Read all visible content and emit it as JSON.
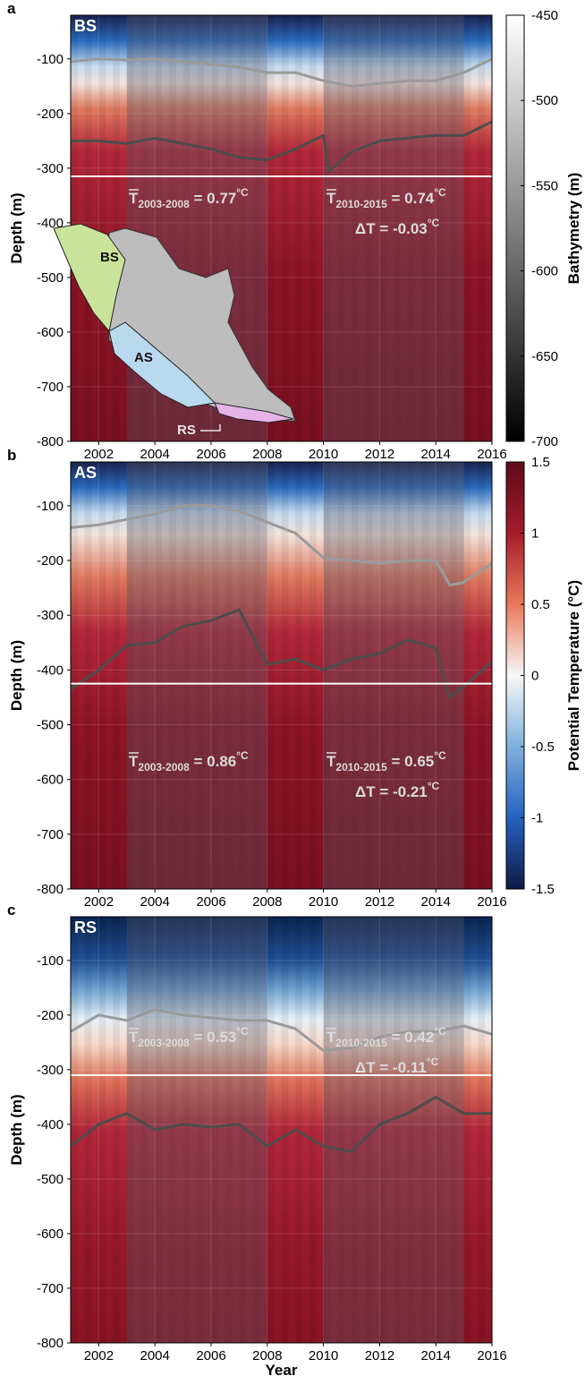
{
  "colors": {
    "warm_dark": "#6e0f1c",
    "warm": "#a51c2c",
    "neutral": "#f2f2f2",
    "cool": "#2a6cbf",
    "cool_dark": "#1b2350",
    "period_shade": "#5a5a6a",
    "isotherm_light": "#9a9a9a",
    "isotherm_dark": "#4d4d4d",
    "bathymetry_line": "#ffffff",
    "map_bs": "#c9e39a",
    "map_as": "#b9d9ee",
    "map_rs": "#e6b3e8",
    "map_land": "#bdbdbd"
  },
  "chart_data": [
    {
      "panel_letter": "a",
      "region": "BS",
      "type": "heatmap",
      "xlabel": "",
      "ylabel": "Depth (m)",
      "xlim": [
        2001,
        2016
      ],
      "ylim": [
        -800,
        -20
      ],
      "x_ticks": [
        "2002",
        "2004",
        "2006",
        "2008",
        "2010",
        "2012",
        "2014",
        "2016"
      ],
      "y_ticks": [
        "-100",
        "-200",
        "-300",
        "-400",
        "-500",
        "-600",
        "-700",
        "-800"
      ],
      "shaded_periods": [
        [
          2003,
          2008
        ],
        [
          2010,
          2015
        ]
      ],
      "bathymetry_depth": -315,
      "isotherm_upper": {
        "x": [
          2001,
          2002,
          2003,
          2004,
          2005,
          2006,
          2007,
          2008,
          2009,
          2010,
          2011,
          2012,
          2013,
          2014,
          2015,
          2016
        ],
        "y": [
          -105,
          -100,
          -102,
          -100,
          -105,
          -110,
          -115,
          -125,
          -125,
          -140,
          -150,
          -145,
          -140,
          -140,
          -125,
          -100
        ]
      },
      "isotherm_lower": {
        "x": [
          2001,
          2002,
          2003,
          2004,
          2005,
          2006,
          2007,
          2008,
          2009,
          2010,
          2010.2,
          2011,
          2012,
          2013,
          2014,
          2015,
          2016
        ],
        "y": [
          -250,
          -250,
          -255,
          -245,
          -255,
          -265,
          -280,
          -285,
          -265,
          -240,
          -305,
          -270,
          -250,
          -245,
          -240,
          -240,
          -215
        ]
      },
      "annotations": [
        {
          "main": "T",
          "sub": "2003-2008",
          "value": " = 0.77",
          "unit": "°C"
        },
        {
          "main": "T",
          "sub": "2010-2015",
          "value": " = 0.74",
          "unit": "°C"
        },
        {
          "main": "ΔT = -0.03",
          "unit": "°C"
        }
      ],
      "map_inset": {
        "labels": [
          "BS",
          "AS",
          "RS"
        ]
      }
    },
    {
      "panel_letter": "b",
      "region": "AS",
      "type": "heatmap",
      "xlabel": "",
      "ylabel": "Depth (m)",
      "xlim": [
        2001,
        2016
      ],
      "ylim": [
        -800,
        -20
      ],
      "x_ticks": [
        "2002",
        "2004",
        "2006",
        "2008",
        "2010",
        "2012",
        "2014",
        "2016"
      ],
      "y_ticks": [
        "-100",
        "-200",
        "-300",
        "-400",
        "-500",
        "-600",
        "-700",
        "-800"
      ],
      "shaded_periods": [
        [
          2003,
          2008
        ],
        [
          2010,
          2015
        ]
      ],
      "bathymetry_depth": -425,
      "isotherm_upper": {
        "x": [
          2001,
          2002,
          2003,
          2004,
          2005,
          2006,
          2007,
          2008,
          2009,
          2010,
          2011,
          2012,
          2013,
          2014,
          2014.5,
          2015,
          2016
        ],
        "y": [
          -140,
          -135,
          -125,
          -115,
          -100,
          -100,
          -110,
          -130,
          -150,
          -195,
          -200,
          -205,
          -200,
          -200,
          -245,
          -240,
          -205
        ]
      },
      "isotherm_lower": {
        "x": [
          2001,
          2002,
          2003,
          2004,
          2005,
          2006,
          2007,
          2008,
          2009,
          2010,
          2011,
          2012,
          2013,
          2014,
          2014.5,
          2015,
          2016
        ],
        "y": [
          -435,
          -400,
          -355,
          -350,
          -320,
          -310,
          -290,
          -390,
          -380,
          -400,
          -380,
          -370,
          -345,
          -360,
          -450,
          -430,
          -385
        ]
      },
      "annotations": [
        {
          "main": "T",
          "sub": "2003-2008",
          "value": " = 0.86",
          "unit": "°C"
        },
        {
          "main": "T",
          "sub": "2010-2015",
          "value": " = 0.65",
          "unit": "°C"
        },
        {
          "main": "ΔT = -0.21",
          "unit": "°C"
        }
      ]
    },
    {
      "panel_letter": "c",
      "region": "RS",
      "type": "heatmap",
      "xlabel": "Year",
      "ylabel": "Depth (m)",
      "xlim": [
        2001,
        2016
      ],
      "ylim": [
        -800,
        -20
      ],
      "x_ticks": [
        "2002",
        "2004",
        "2006",
        "2008",
        "2010",
        "2012",
        "2014",
        "2016"
      ],
      "y_ticks": [
        "-100",
        "-200",
        "-300",
        "-400",
        "-500",
        "-600",
        "-700",
        "-800"
      ],
      "shaded_periods": [
        [
          2003,
          2008
        ],
        [
          2010,
          2015
        ]
      ],
      "bathymetry_depth": -310,
      "isotherm_upper": {
        "x": [
          2001,
          2002,
          2003,
          2004,
          2005,
          2006,
          2007,
          2008,
          2009,
          2010,
          2011,
          2012,
          2013,
          2014,
          2015,
          2016
        ],
        "y": [
          -230,
          -200,
          -210,
          -190,
          -200,
          -205,
          -210,
          -210,
          -225,
          -265,
          -260,
          -240,
          -230,
          -230,
          -220,
          -235
        ]
      },
      "isotherm_lower": {
        "x": [
          2001,
          2002,
          2003,
          2004,
          2005,
          2006,
          2007,
          2008,
          2009,
          2010,
          2011,
          2012,
          2013,
          2014,
          2015,
          2016
        ],
        "y": [
          -440,
          -400,
          -380,
          -410,
          -400,
          -405,
          -400,
          -440,
          -410,
          -440,
          -450,
          -400,
          -380,
          -350,
          -380,
          -380
        ]
      },
      "annotations": [
        {
          "main": "T",
          "sub": "2003-2008",
          "value": " = 0.53",
          "unit": "°C"
        },
        {
          "main": "T",
          "sub": "2010-2015",
          "value": " = 0.42",
          "unit": "°C"
        },
        {
          "main": "ΔT = -0.11",
          "unit": "°C"
        }
      ]
    }
  ],
  "colorbars": [
    {
      "label": "Bathymetry (m)",
      "range": [
        -700,
        -450
      ],
      "ticks": [
        "-450",
        "-500",
        "-550",
        "-600",
        "-650",
        "-700"
      ],
      "colors": [
        "#ffffff",
        "#000000"
      ]
    },
    {
      "label": "Potential Temperature (°C)",
      "range": [
        -1.5,
        1.5
      ],
      "ticks": [
        "1.5",
        "1",
        "0.5",
        "0",
        "-0.5",
        "-1",
        "-1.5"
      ],
      "colors": [
        "#5c0b1a",
        "#a51c2c",
        "#e8795a",
        "#f7f7f7",
        "#7fb0db",
        "#2561c0",
        "#101b45"
      ]
    }
  ]
}
